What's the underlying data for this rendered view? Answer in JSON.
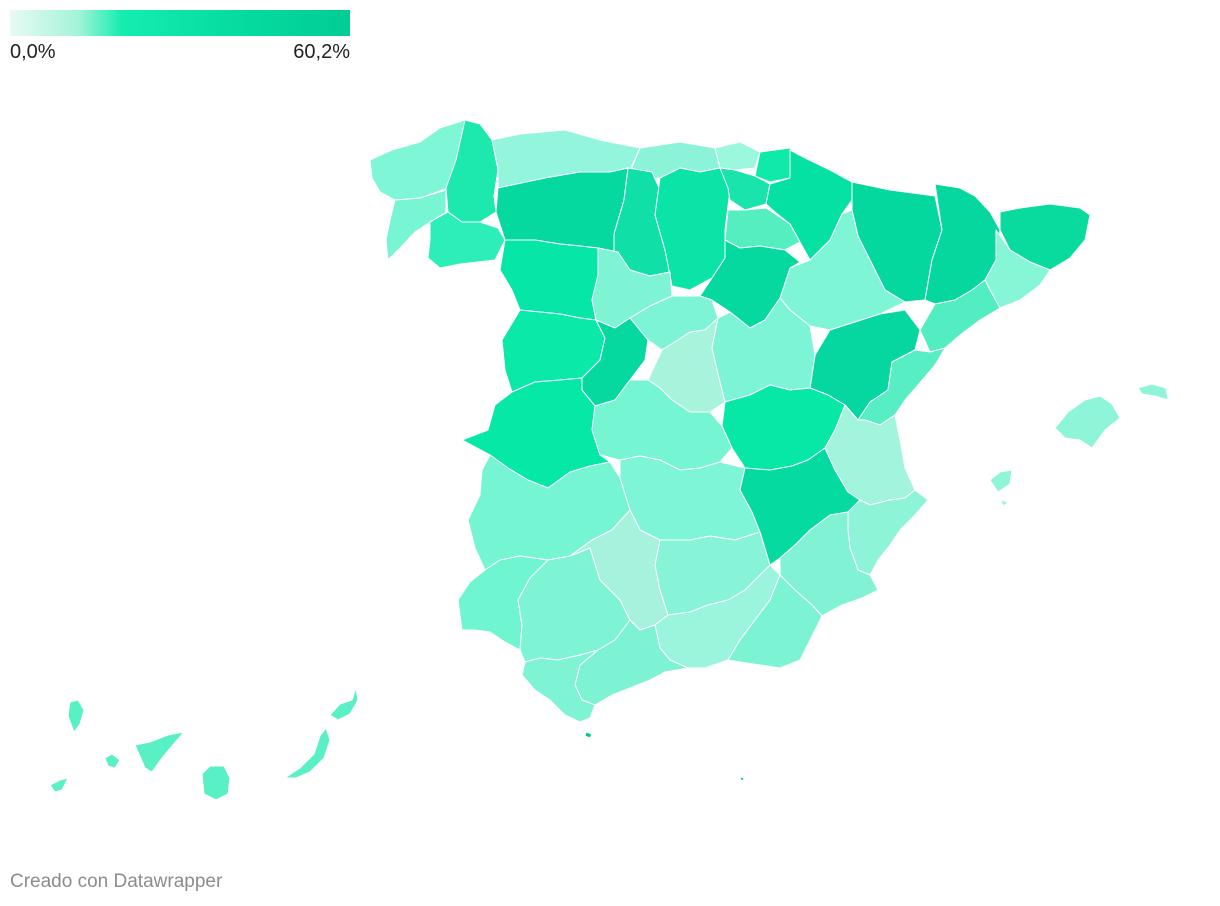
{
  "legend": {
    "min_label": "0,0%",
    "max_label": "60,2%",
    "min_value": 0.0,
    "max_value": 60.2,
    "colors": [
      "#e8fbf4",
      "#a4f3d8",
      "#13eeaf",
      "#06dda0",
      "#00cc95"
    ]
  },
  "footer": {
    "credit": "Creado con Datawrapper"
  },
  "colors": {
    "background": "#ffffff",
    "region_border": "#ffffff",
    "text": "#222222",
    "credit_text": "#8c8c8c"
  }
}
